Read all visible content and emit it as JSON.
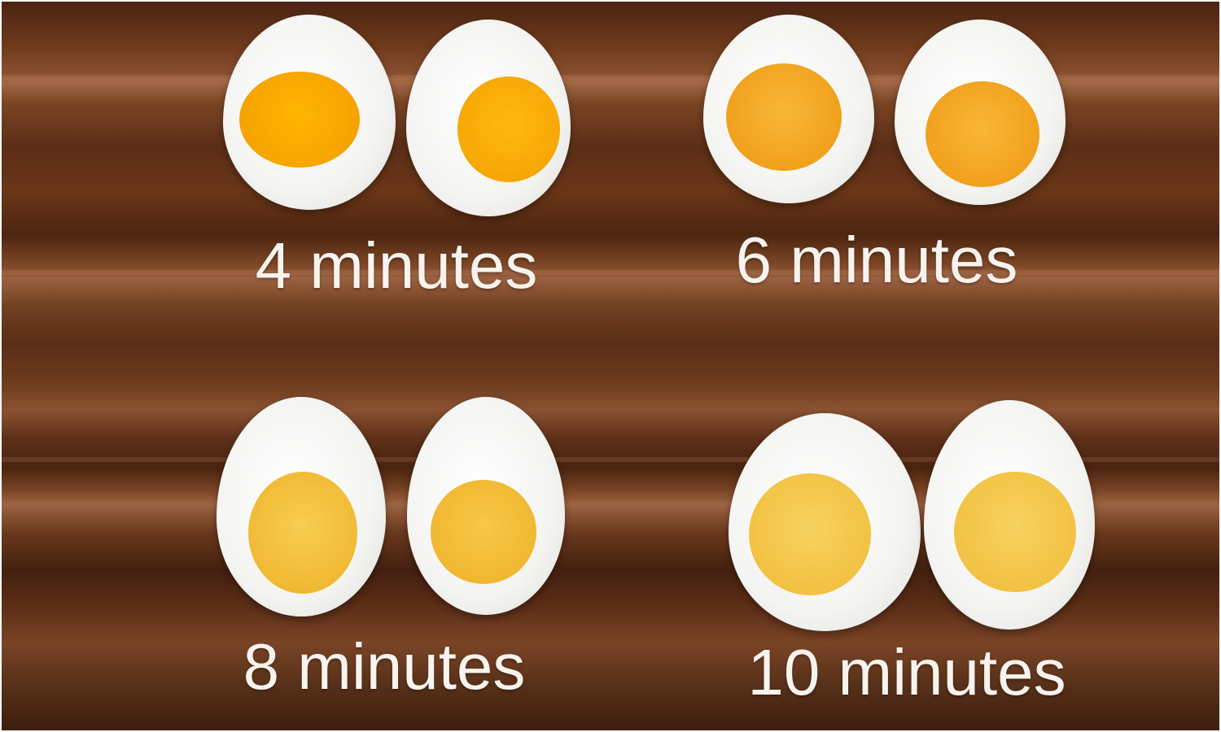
{
  "labels": {
    "four": "4 minutes",
    "six": "6 minutes",
    "eight": "8 minutes",
    "ten": "10 minutes"
  },
  "colors": {
    "wood": "#6e3a1c",
    "egg_white": "#f4f4f2",
    "yolk_4min": "#f6a800",
    "yolk_6min": "#f2a324",
    "yolk_8min": "#f3bd36",
    "yolk_10min": "#f2c440"
  }
}
